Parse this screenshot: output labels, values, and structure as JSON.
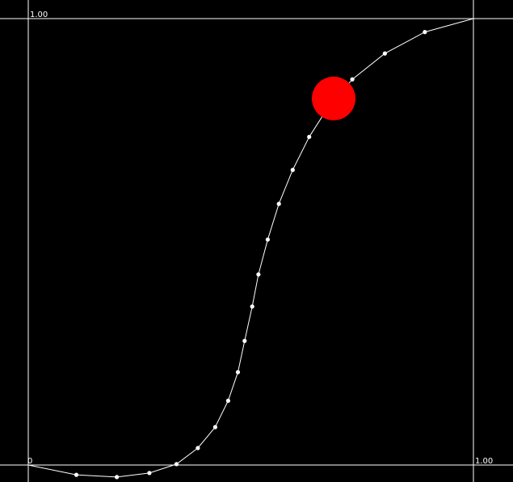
{
  "axes": {
    "y_max_label": "1.00",
    "origin_label": "0",
    "x_max_label": "1.00",
    "line_color": "#ffffff",
    "background_color": "#000000"
  },
  "curve": {
    "stroke_color": "#ffffff",
    "point_color": "#ffffff",
    "points": [
      {
        "x": 0.0,
        "y": 0.0
      },
      {
        "x": 0.108,
        "y": -0.022
      },
      {
        "x": 0.199,
        "y": -0.027
      },
      {
        "x": 0.272,
        "y": -0.018
      },
      {
        "x": 0.333,
        "y": 0.002
      },
      {
        "x": 0.381,
        "y": 0.038
      },
      {
        "x": 0.42,
        "y": 0.085
      },
      {
        "x": 0.449,
        "y": 0.144
      },
      {
        "x": 0.471,
        "y": 0.208
      },
      {
        "x": 0.486,
        "y": 0.278
      },
      {
        "x": 0.503,
        "y": 0.355
      },
      {
        "x": 0.517,
        "y": 0.427
      },
      {
        "x": 0.538,
        "y": 0.505
      },
      {
        "x": 0.563,
        "y": 0.585
      },
      {
        "x": 0.594,
        "y": 0.661
      },
      {
        "x": 0.631,
        "y": 0.735
      },
      {
        "x": 0.674,
        "y": 0.802
      },
      {
        "x": 0.728,
        "y": 0.864
      },
      {
        "x": 0.801,
        "y": 0.922
      },
      {
        "x": 0.891,
        "y": 0.97
      },
      {
        "x": 1.0,
        "y": 1.0
      }
    ]
  },
  "marker": {
    "x": 0.686,
    "y": 0.821,
    "color": "#ff0000"
  }
}
